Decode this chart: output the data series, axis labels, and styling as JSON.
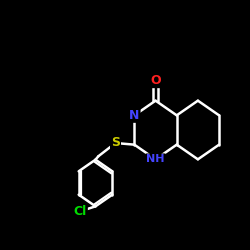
{
  "bg_color": "#000000",
  "atom_colors": {
    "C": "#ffffff",
    "N": "#4444ff",
    "O": "#ff2020",
    "S": "#cccc00",
    "Cl": "#00dd00",
    "H": "#ffffff"
  },
  "bond_color": "#ffffff",
  "bond_width": 1.8,
  "figsize": [
    2.5,
    2.5
  ],
  "dpi": 100
}
